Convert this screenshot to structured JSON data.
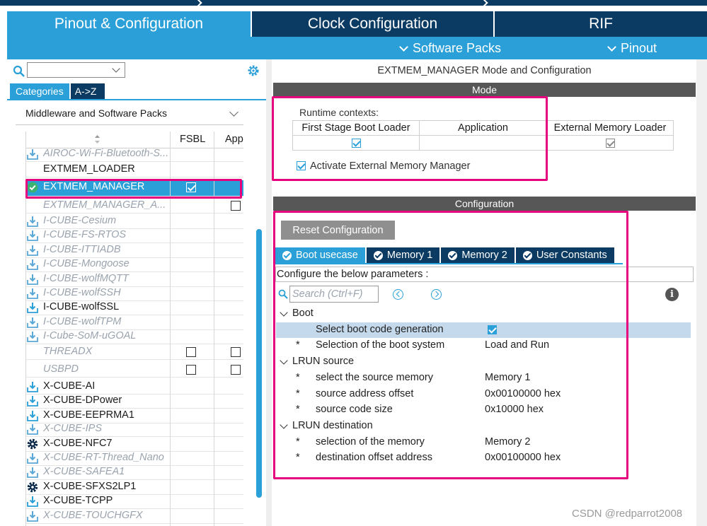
{
  "top_tabs": [
    {
      "label": "Pinout & Configuration",
      "active": true
    },
    {
      "label": "Clock Configuration",
      "active": false
    },
    {
      "label": "RIF",
      "active": false
    }
  ],
  "subbar": {
    "software_packs": "Software Packs",
    "pinout": "Pinout"
  },
  "left": {
    "category_tabs": [
      "Categories",
      "A->Z"
    ],
    "section": "Middleware and Software Packs",
    "columns": [
      "FSBL",
      "App"
    ],
    "rows": [
      {
        "name": "AIROC-Wi-Fi-Bluetooth-S...",
        "icon": "download-icon",
        "disabled": true,
        "fsbl": null,
        "app": null
      },
      {
        "name": "EXTMEM_LOADER",
        "icon": "",
        "disabled": false,
        "fsbl": null,
        "app": null
      },
      {
        "name": "EXTMEM_MANAGER",
        "icon": "check-circle-icon",
        "disabled": false,
        "selected": true,
        "fsbl": true,
        "app": null
      },
      {
        "name": "EXTMEM_MANAGER_A...",
        "icon": "",
        "disabled": true,
        "fsbl": null,
        "app": false
      },
      {
        "name": "I-CUBE-Cesium",
        "icon": "download-icon",
        "disabled": true
      },
      {
        "name": "I-CUBE-FS-RTOS",
        "icon": "download-icon",
        "disabled": true
      },
      {
        "name": "I-CUBE-ITTIADB",
        "icon": "download-icon",
        "disabled": true
      },
      {
        "name": "I-CUBE-Mongoose",
        "icon": "download-icon",
        "disabled": true
      },
      {
        "name": "I-CUBE-wolfMQTT",
        "icon": "download-icon",
        "disabled": true
      },
      {
        "name": "I-CUBE-wolfSSH",
        "icon": "download-icon",
        "disabled": true
      },
      {
        "name": "I-CUBE-wolfSSL",
        "icon": "download-icon",
        "disabled": false
      },
      {
        "name": "I-CUBE-wolfTPM",
        "icon": "download-icon",
        "disabled": true
      },
      {
        "name": "I-Cube-SoM-uGOAL",
        "icon": "download-icon",
        "disabled": true
      },
      {
        "name": "THREADX",
        "icon": "",
        "disabled": true,
        "fsbl": false,
        "app": false
      },
      {
        "name": "USBPD",
        "icon": "",
        "disabled": true,
        "fsbl": false,
        "app": false
      },
      {
        "name": "X-CUBE-AI",
        "icon": "download-icon",
        "disabled": false
      },
      {
        "name": "X-CUBE-DPower",
        "icon": "download-icon",
        "disabled": false
      },
      {
        "name": "X-CUBE-EEPRMA1",
        "icon": "download-icon",
        "disabled": false
      },
      {
        "name": "X-CUBE-IPS",
        "icon": "download-icon",
        "disabled": true
      },
      {
        "name": "X-CUBE-NFC7",
        "icon": "gear-icon",
        "disabled": false
      },
      {
        "name": "X-CUBE-RT-Thread_Nano",
        "icon": "download-icon",
        "disabled": true
      },
      {
        "name": "X-CUBE-SAFEA1",
        "icon": "download-icon",
        "disabled": true
      },
      {
        "name": "X-CUBE-SFXS2LP1",
        "icon": "gear-icon",
        "disabled": false
      },
      {
        "name": "X-CUBE-TCPP",
        "icon": "download-icon",
        "disabled": false
      },
      {
        "name": "X-CUBE-TOUCHGFX",
        "icon": "download-icon",
        "disabled": true
      }
    ]
  },
  "right": {
    "title": "EXTMEM_MANAGER Mode and Configuration",
    "mode_header": "Mode",
    "runtime_label": "Runtime contexts:",
    "contexts": [
      {
        "label": "First Stage Boot Loader",
        "checked": true,
        "enabled": true
      },
      {
        "label": "Application",
        "checked": false,
        "enabled": true
      },
      {
        "label": "External Memory Loader",
        "checked": true,
        "enabled": false
      }
    ],
    "activate_label": "Activate External Memory Manager",
    "activate_checked": true,
    "config_header": "Configuration",
    "reset_button": "Reset Configuration",
    "config_tabs": [
      "Boot usecase",
      "Memory 1",
      "Memory 2",
      "User Constants"
    ],
    "config_desc": "Configure the below parameters :",
    "search_placeholder": "Search (Ctrl+F)",
    "groups": [
      {
        "name": "Boot",
        "params": [
          {
            "star": "",
            "name": "Select boot code generation",
            "value": "",
            "checkbox": true,
            "highlight": true
          },
          {
            "star": "*",
            "name": "Selection of the boot system",
            "value": "Load and Run"
          }
        ]
      },
      {
        "name": "LRUN source",
        "params": [
          {
            "star": "*",
            "name": "select the source memory",
            "value": "Memory 1"
          },
          {
            "star": "*",
            "name": "source address offset",
            "value": "0x00100000 hex"
          },
          {
            "star": "*",
            "name": "source code size",
            "value": "0x10000 hex"
          }
        ]
      },
      {
        "name": "LRUN destination",
        "params": [
          {
            "star": "*",
            "name": "selection of the memory",
            "value": "Memory 2"
          },
          {
            "star": "*",
            "name": "destination offset address",
            "value": "0x00100000 hex"
          }
        ]
      }
    ]
  },
  "watermark": "CSDN @redparrot2008",
  "colors": {
    "accent": "#2a9fd8",
    "navy": "#0b3a62",
    "highlight": "#e6007e"
  }
}
